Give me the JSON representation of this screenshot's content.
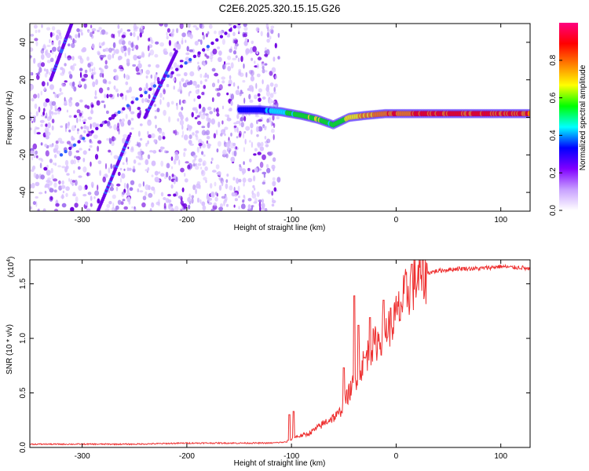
{
  "title": "C2E6.2025.320.15.15.G26",
  "spectrogram": {
    "type": "heatmap",
    "xlabel": "Height of straight line (km)",
    "ylabel": "Frequency (Hz)",
    "xlim": [
      -350,
      128
    ],
    "ylim": [
      -50,
      50
    ],
    "xticks": [
      -300,
      -200,
      -100,
      0,
      100
    ],
    "xtick_labels": [
      "-300",
      "-200",
      "-100",
      "0",
      "100"
    ],
    "yticks": [
      -40,
      -20,
      0,
      20,
      40
    ],
    "ytick_labels": [
      "-40",
      "-20",
      "0",
      "20",
      "40"
    ],
    "colorbar": {
      "label": "Normalized spectral amplitude",
      "range": [
        0,
        1
      ],
      "ticks": [
        0.0,
        0.2,
        0.4,
        0.6,
        0.8
      ],
      "tick_labels": [
        "0.0",
        "0.2",
        "0.4",
        "0.6",
        "0.8"
      ],
      "colors": [
        "#ffffff",
        "#c8a0ff",
        "#8000ff",
        "#0000ff",
        "#00ffff",
        "#00ff00",
        "#ffff00",
        "#ff8000",
        "#ff0000",
        "#ff0080"
      ]
    },
    "noise_region_x": [
      -350,
      -112
    ],
    "signal_band": {
      "x": [
        -150,
        -130,
        -110,
        -90,
        -75,
        -60,
        -45,
        -30,
        -10,
        0,
        30,
        60,
        90,
        128
      ],
      "freq": [
        4,
        4,
        3,
        1,
        -1,
        -4,
        0,
        1,
        2,
        2,
        2,
        2,
        2,
        2
      ],
      "amplitude": [
        0.35,
        0.4,
        0.5,
        0.6,
        0.65,
        0.55,
        0.7,
        0.8,
        0.85,
        0.88,
        0.92,
        0.95,
        0.93,
        0.9
      ]
    },
    "diagonal_traces": [
      {
        "x": [
          -330,
          -310
        ],
        "freq": [
          20,
          50
        ]
      },
      {
        "x": [
          -320,
          -150
        ],
        "freq": [
          -20,
          50
        ]
      },
      {
        "x": [
          -285,
          -255
        ],
        "freq": [
          -50,
          -10
        ]
      },
      {
        "x": [
          -240,
          -210
        ],
        "freq": [
          0,
          35
        ]
      }
    ]
  },
  "snr": {
    "type": "line",
    "xlabel": "Height of straight line (km)",
    "ylabel": "SNR (10 * v/v)",
    "scale_label": "(x10",
    "scale_exp": "4",
    "scale_close": ")",
    "xlim": [
      -350,
      128
    ],
    "ylim": [
      0,
      1.72
    ],
    "xticks": [
      -300,
      -200,
      -100,
      0,
      100
    ],
    "xtick_labels": [
      "-300",
      "-200",
      "-100",
      "0",
      "100"
    ],
    "yticks": [
      0.0,
      0.5,
      1.0,
      1.5
    ],
    "ytick_labels": [
      "0.0",
      "0.5",
      "1.0",
      "1.5"
    ],
    "line_color": "#ee3030",
    "series": {
      "x": [
        -350,
        -300,
        -250,
        -200,
        -150,
        -120,
        -105,
        -95,
        -85,
        -75,
        -65,
        -55,
        -50,
        -45,
        -40,
        -35,
        -30,
        -25,
        -20,
        -15,
        -10,
        -5,
        0,
        5,
        10,
        20,
        30,
        40,
        50,
        60,
        70,
        80,
        90,
        100,
        110,
        120,
        128
      ],
      "y": [
        0.03,
        0.03,
        0.03,
        0.04,
        0.04,
        0.04,
        0.05,
        0.1,
        0.12,
        0.18,
        0.25,
        0.3,
        0.4,
        0.5,
        0.6,
        0.7,
        0.8,
        0.9,
        0.95,
        1.0,
        1.08,
        1.12,
        1.2,
        1.3,
        1.42,
        1.55,
        1.6,
        1.62,
        1.63,
        1.64,
        1.64,
        1.64,
        1.65,
        1.66,
        1.65,
        1.65,
        1.63
      ]
    },
    "peaks": [
      {
        "x": -102,
        "y": 0.3
      },
      {
        "x": -98,
        "y": 0.33
      },
      {
        "x": -50,
        "y": 0.73
      },
      {
        "x": -40,
        "y": 1.39
      },
      {
        "x": -36,
        "y": 1.12
      },
      {
        "x": -25,
        "y": 1.19
      },
      {
        "x": -12,
        "y": 1.35
      },
      {
        "x": 15,
        "y": 1.68
      }
    ]
  }
}
